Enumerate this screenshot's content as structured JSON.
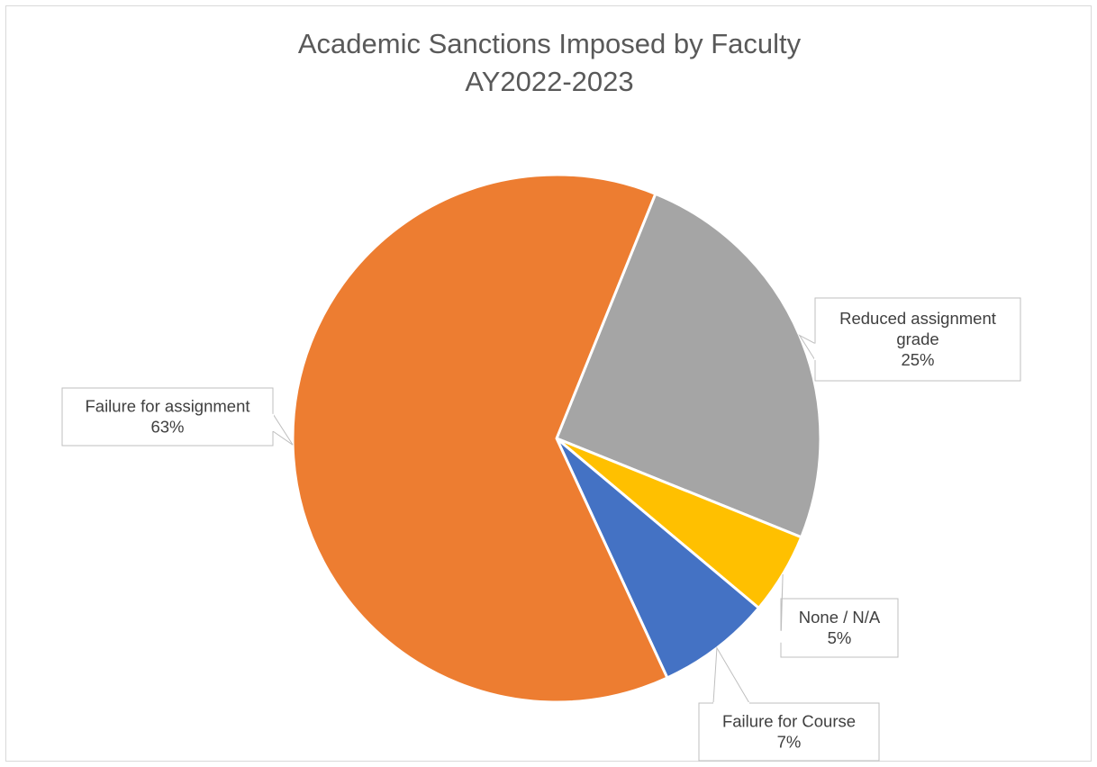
{
  "chart_data": {
    "type": "pie",
    "title": [
      "Academic Sanctions Imposed by Faculty",
      "AY2022-2023"
    ],
    "start_angle_deg": 22,
    "slices": [
      {
        "name": "Reduced assignment grade",
        "label_lines": [
          "Reduced assignment",
          "grade"
        ],
        "value": 25,
        "pct": "25%",
        "color": "#A5A5A5"
      },
      {
        "name": "None / N/A",
        "label_lines": [
          "None / N/A"
        ],
        "value": 5,
        "pct": "5%",
        "color": "#FFC000"
      },
      {
        "name": "Failure for Course",
        "label_lines": [
          "Failure for Course"
        ],
        "value": 7,
        "pct": "7%",
        "color": "#4472C4"
      },
      {
        "name": "Failure for assignment",
        "label_lines": [
          "Failure for assignment"
        ],
        "value": 63,
        "pct": "63%",
        "color": "#ED7D31"
      }
    ]
  }
}
